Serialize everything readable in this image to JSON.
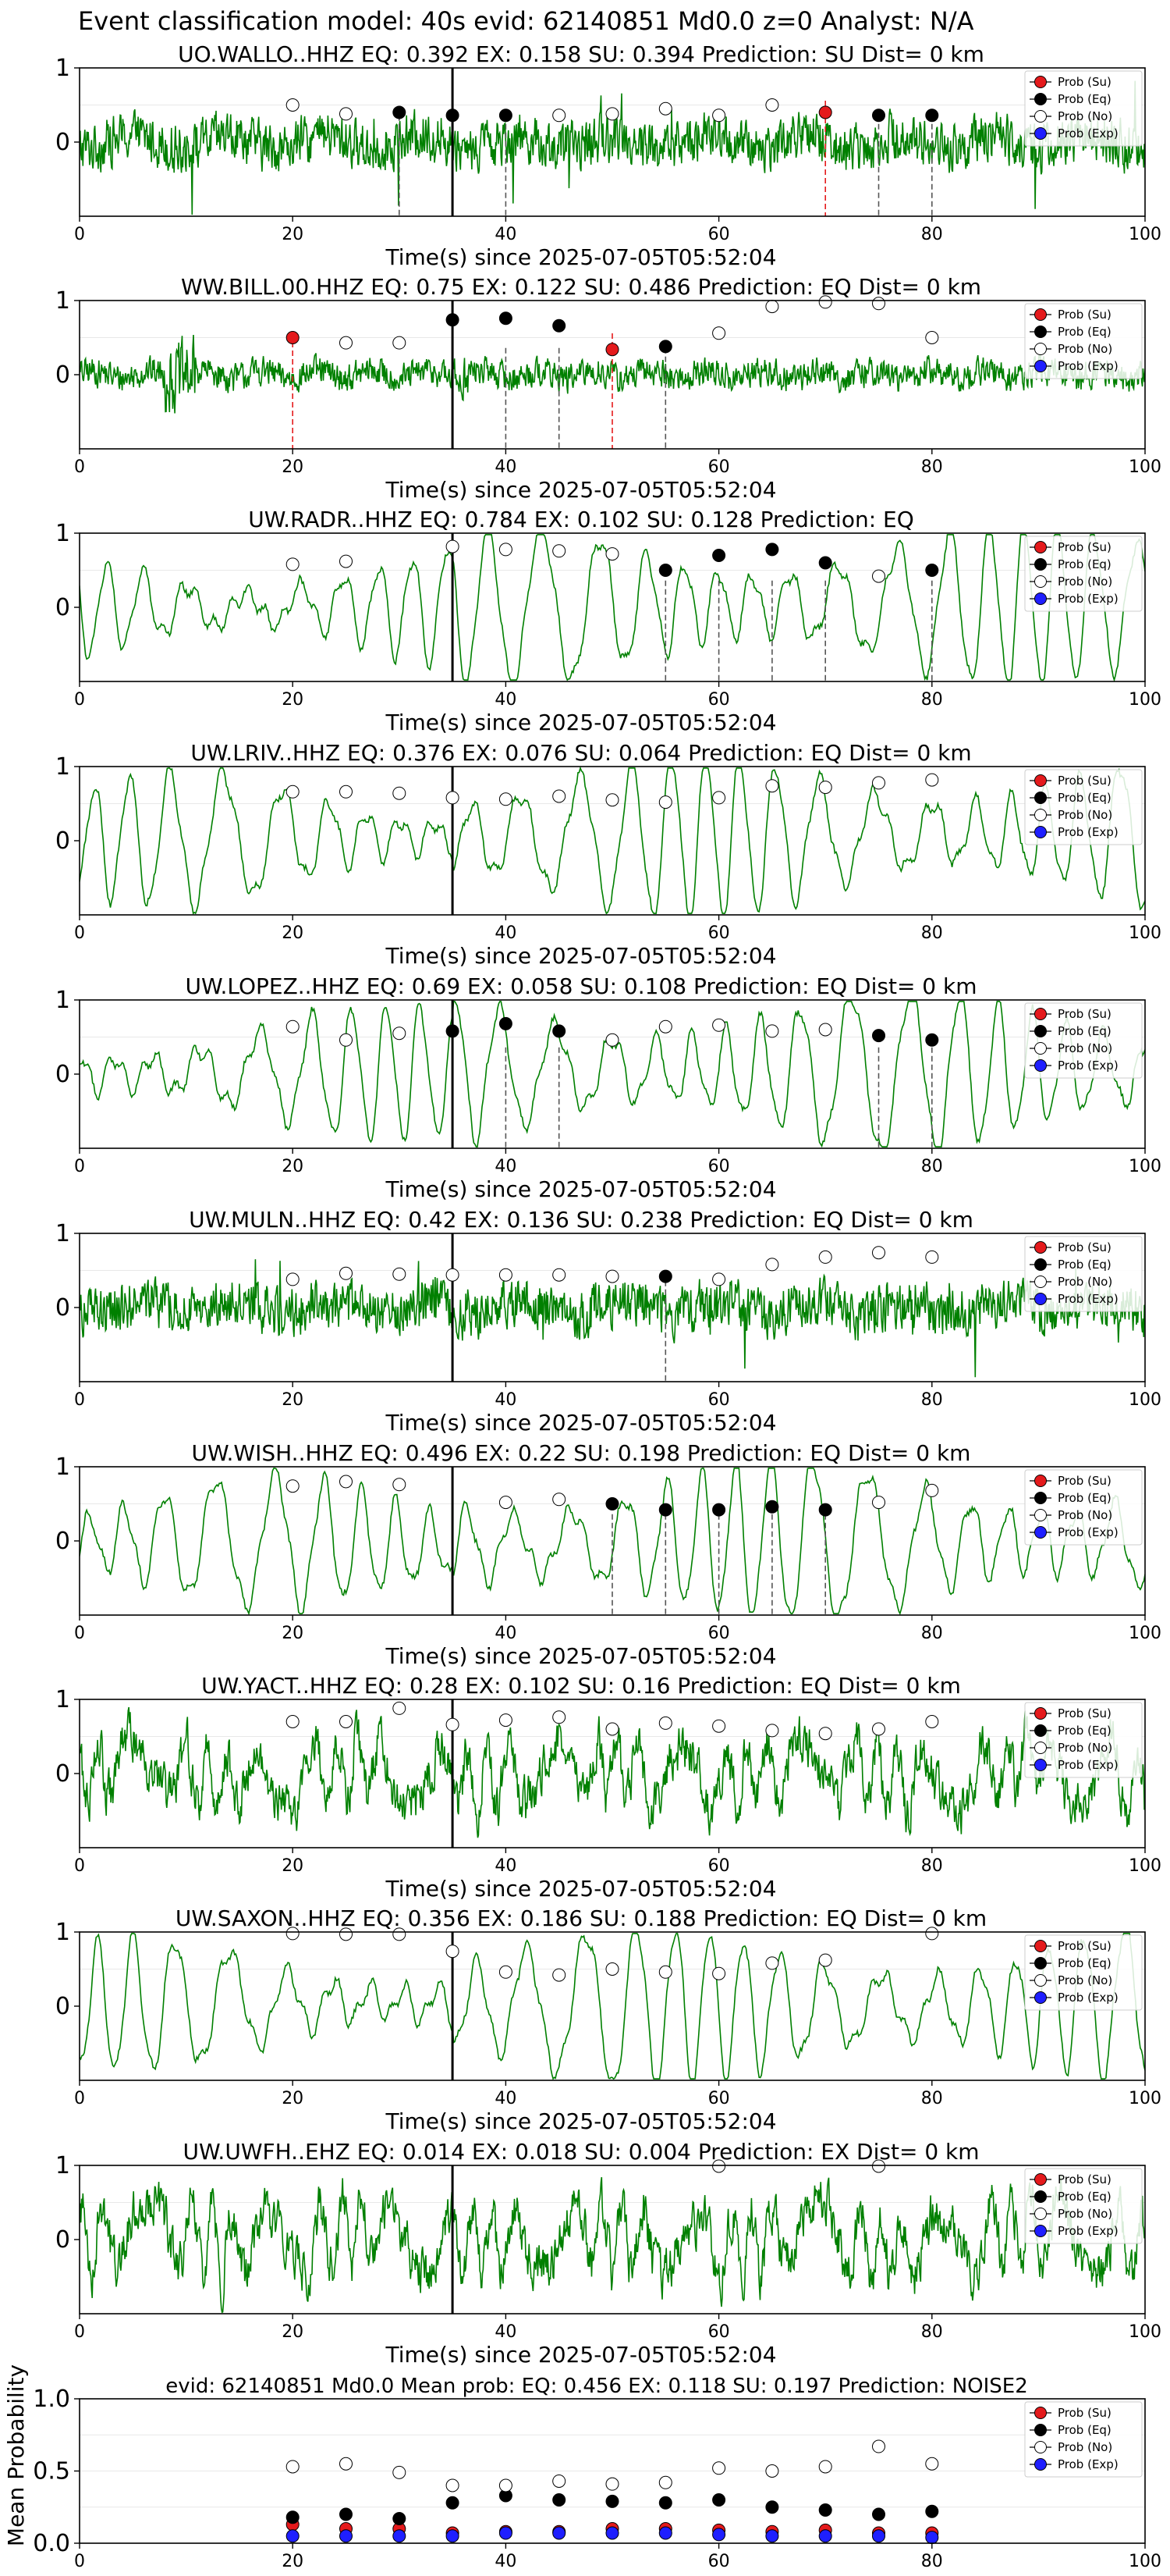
{
  "figure": {
    "suptitle": "Event classification model: 40s evid: 62140851 Md0.0 z=0 Analyst: N/A",
    "xlabel": "Time(s) since 2025-07-05T05:52:04",
    "legend_labels": [
      "Prob (Su)",
      "Prob (Eq)",
      "Prob (No)",
      "Prob (Exp)"
    ]
  },
  "colors": {
    "trace": "#008000",
    "su": "#e41a1c",
    "eq": "#000000",
    "no": "#ffffff",
    "exp": "#1f1fff",
    "onset_line": "#000000",
    "eq_marker_line": "#555555",
    "su_marker_line": "#e41a1c"
  },
  "chart_data": [
    {
      "type": "line",
      "title": "UO.WALLO..HHZ   EQ: 0.392  EX: 0.158  SU: 0.394   Prediction: SU    Dist= 0 km",
      "xlim": [
        0,
        100
      ],
      "ylim": [
        -1,
        1
      ],
      "xticks": [
        0,
        20,
        40,
        60,
        80,
        100
      ],
      "yticks": [
        0,
        1
      ],
      "onset": 35,
      "noise": "high",
      "series": [
        {
          "name": "Prob (Su)",
          "x": [
            70
          ],
          "y": [
            0.4
          ]
        },
        {
          "name": "Prob (Eq)",
          "x": [
            30,
            35,
            40,
            75,
            80
          ],
          "y": [
            0.4,
            0.36,
            0.36,
            0.36,
            0.36
          ]
        },
        {
          "name": "Prob (No)",
          "x": [
            20,
            25,
            45,
            50,
            55,
            60,
            65
          ],
          "y": [
            0.5,
            0.38,
            0.36,
            0.38,
            0.45,
            0.36,
            0.5
          ]
        },
        {
          "name": "Prob (Exp)",
          "x": [],
          "y": []
        }
      ],
      "eq_lines": [
        30,
        40,
        75,
        80
      ],
      "su_lines": [
        70
      ]
    },
    {
      "type": "line",
      "title": "WW.BILL.00.HHZ   EQ: 0.75  EX: 0.122  SU: 0.486   Prediction: EQ    Dist= 0 km",
      "xlim": [
        0,
        100
      ],
      "ylim": [
        -1,
        1
      ],
      "xticks": [
        0,
        20,
        40,
        60,
        80,
        100
      ],
      "yticks": [
        0,
        1
      ],
      "onset": 35,
      "noise": "burst",
      "series": [
        {
          "name": "Prob (Su)",
          "x": [
            20,
            50
          ],
          "y": [
            0.5,
            0.34
          ]
        },
        {
          "name": "Prob (Eq)",
          "x": [
            35,
            40,
            45,
            55
          ],
          "y": [
            0.74,
            0.76,
            0.66,
            0.38
          ]
        },
        {
          "name": "Prob (No)",
          "x": [
            25,
            30,
            60,
            65,
            70,
            75,
            80
          ],
          "y": [
            0.43,
            0.43,
            0.56,
            0.92,
            0.98,
            0.96,
            0.5
          ]
        },
        {
          "name": "Prob (Exp)",
          "x": [],
          "y": []
        }
      ],
      "eq_lines": [
        40,
        45,
        55
      ],
      "su_lines": [
        20,
        50
      ]
    },
    {
      "type": "line",
      "title": "UW.RADR..HHZ   EQ: 0.784  EX: 0.102  SU: 0.128   Prediction: EQ",
      "xlim": [
        0,
        100
      ],
      "ylim": [
        -1,
        1
      ],
      "xticks": [
        0,
        20,
        40,
        60,
        80,
        100
      ],
      "yticks": [
        0,
        1
      ],
      "onset": 35,
      "noise": "smooth",
      "series": [
        {
          "name": "Prob (Su)",
          "x": [],
          "y": []
        },
        {
          "name": "Prob (Eq)",
          "x": [
            55,
            60,
            65,
            70,
            80
          ],
          "y": [
            0.5,
            0.7,
            0.78,
            0.6,
            0.5
          ]
        },
        {
          "name": "Prob (No)",
          "x": [
            20,
            25,
            35,
            40,
            45,
            50,
            75
          ],
          "y": [
            0.58,
            0.62,
            0.82,
            0.78,
            0.76,
            0.72,
            0.42
          ]
        },
        {
          "name": "Prob (Exp)",
          "x": [],
          "y": []
        }
      ],
      "eq_lines": [
        55,
        60,
        65,
        70,
        80
      ],
      "su_lines": []
    },
    {
      "type": "line",
      "title": "UW.LRIV..HHZ   EQ: 0.376  EX: 0.076  SU: 0.064   Prediction: EQ    Dist= 0 km",
      "xlim": [
        0,
        100
      ],
      "ylim": [
        -1,
        1
      ],
      "xticks": [
        0,
        20,
        40,
        60,
        80,
        100
      ],
      "yticks": [
        0,
        1
      ],
      "onset": 35,
      "noise": "smooth",
      "series": [
        {
          "name": "Prob (Su)",
          "x": [],
          "y": []
        },
        {
          "name": "Prob (Eq)",
          "x": [],
          "y": []
        },
        {
          "name": "Prob (No)",
          "x": [
            20,
            25,
            30,
            35,
            40,
            45,
            50,
            55,
            60,
            65,
            70,
            75,
            80
          ],
          "y": [
            0.66,
            0.66,
            0.64,
            0.58,
            0.56,
            0.6,
            0.55,
            0.52,
            0.58,
            0.74,
            0.72,
            0.78,
            0.82
          ]
        },
        {
          "name": "Prob (Exp)",
          "x": [],
          "y": []
        }
      ],
      "eq_lines": [],
      "su_lines": []
    },
    {
      "type": "line",
      "title": "UW.LOPEZ..HHZ   EQ: 0.69  EX: 0.058  SU: 0.108   Prediction: EQ    Dist= 0 km",
      "xlim": [
        0,
        100
      ],
      "ylim": [
        -1,
        1
      ],
      "xticks": [
        0,
        20,
        40,
        60,
        80,
        100
      ],
      "yticks": [
        0,
        1
      ],
      "onset": 35,
      "noise": "smooth",
      "series": [
        {
          "name": "Prob (Su)",
          "x": [],
          "y": []
        },
        {
          "name": "Prob (Eq)",
          "x": [
            35,
            40,
            45,
            75,
            80
          ],
          "y": [
            0.58,
            0.68,
            0.58,
            0.52,
            0.46
          ]
        },
        {
          "name": "Prob (No)",
          "x": [
            20,
            25,
            30,
            50,
            55,
            60,
            65,
            70
          ],
          "y": [
            0.64,
            0.46,
            0.55,
            0.46,
            0.64,
            0.66,
            0.58,
            0.6
          ]
        },
        {
          "name": "Prob (Exp)",
          "x": [],
          "y": []
        }
      ],
      "eq_lines": [
        40,
        45,
        75,
        80
      ],
      "su_lines": []
    },
    {
      "type": "line",
      "title": "UW.MULN..HHZ   EQ: 0.42  EX: 0.136  SU: 0.238   Prediction: EQ    Dist= 0 km",
      "xlim": [
        0,
        100
      ],
      "ylim": [
        -1,
        1
      ],
      "xticks": [
        0,
        20,
        40,
        60,
        80,
        100
      ],
      "yticks": [
        0,
        1
      ],
      "onset": 35,
      "noise": "high",
      "series": [
        {
          "name": "Prob (Su)",
          "x": [],
          "y": []
        },
        {
          "name": "Prob (Eq)",
          "x": [
            55
          ],
          "y": [
            0.42
          ]
        },
        {
          "name": "Prob (No)",
          "x": [
            20,
            25,
            30,
            35,
            40,
            45,
            50,
            60,
            65,
            70,
            75,
            80
          ],
          "y": [
            0.38,
            0.46,
            0.45,
            0.44,
            0.44,
            0.44,
            0.42,
            0.38,
            0.58,
            0.68,
            0.74,
            0.68
          ]
        },
        {
          "name": "Prob (Exp)",
          "x": [],
          "y": []
        }
      ],
      "eq_lines": [
        55
      ],
      "su_lines": []
    },
    {
      "type": "line",
      "title": "UW.WISH..HHZ   EQ: 0.496  EX: 0.22  SU: 0.198   Prediction: EQ    Dist= 0 km",
      "xlim": [
        0,
        100
      ],
      "ylim": [
        -1,
        1
      ],
      "xticks": [
        0,
        20,
        40,
        60,
        80,
        100
      ],
      "yticks": [
        0,
        1
      ],
      "onset": 35,
      "noise": "smooth",
      "series": [
        {
          "name": "Prob (Su)",
          "x": [],
          "y": []
        },
        {
          "name": "Prob (Eq)",
          "x": [
            50,
            55,
            60,
            65,
            70
          ],
          "y": [
            0.5,
            0.42,
            0.42,
            0.46,
            0.42
          ]
        },
        {
          "name": "Prob (No)",
          "x": [
            20,
            25,
            30,
            40,
            45,
            75,
            80
          ],
          "y": [
            0.74,
            0.8,
            0.76,
            0.52,
            0.56,
            0.52,
            0.68
          ]
        },
        {
          "name": "Prob (Exp)",
          "x": [],
          "y": []
        }
      ],
      "eq_lines": [
        50,
        55,
        60,
        65,
        70
      ],
      "su_lines": []
    },
    {
      "type": "line",
      "title": "UW.YACT..HHZ   EQ: 0.28  EX: 0.102  SU: 0.16   Prediction: EQ    Dist= 0 km",
      "xlim": [
        0,
        100
      ],
      "ylim": [
        -1,
        1
      ],
      "xticks": [
        0,
        20,
        40,
        60,
        80,
        100
      ],
      "yticks": [
        0,
        1
      ],
      "onset": 35,
      "noise": "medium",
      "series": [
        {
          "name": "Prob (Su)",
          "x": [],
          "y": []
        },
        {
          "name": "Prob (Eq)",
          "x": [],
          "y": []
        },
        {
          "name": "Prob (No)",
          "x": [
            20,
            25,
            30,
            35,
            40,
            45,
            50,
            55,
            60,
            65,
            70,
            75,
            80
          ],
          "y": [
            0.7,
            0.7,
            0.88,
            0.66,
            0.72,
            0.76,
            0.6,
            0.68,
            0.64,
            0.58,
            0.54,
            0.6,
            0.7
          ]
        },
        {
          "name": "Prob (Exp)",
          "x": [],
          "y": []
        }
      ],
      "eq_lines": [],
      "su_lines": []
    },
    {
      "type": "line",
      "title": "UW.SAXON..HHZ   EQ: 0.356  EX: 0.186  SU: 0.188   Prediction: EQ    Dist= 0 km",
      "xlim": [
        0,
        100
      ],
      "ylim": [
        -1,
        1
      ],
      "xticks": [
        0,
        20,
        40,
        60,
        80,
        100
      ],
      "yticks": [
        0,
        1
      ],
      "onset": 35,
      "noise": "smooth",
      "series": [
        {
          "name": "Prob (Su)",
          "x": [],
          "y": []
        },
        {
          "name": "Prob (Eq)",
          "x": [],
          "y": []
        },
        {
          "name": "Prob (No)",
          "x": [
            20,
            25,
            30,
            35,
            40,
            45,
            50,
            55,
            60,
            65,
            70,
            80
          ],
          "y": [
            0.98,
            0.97,
            0.97,
            0.74,
            0.46,
            0.42,
            0.5,
            0.46,
            0.44,
            0.58,
            0.62,
            0.98
          ]
        },
        {
          "name": "Prob (Exp)",
          "x": [],
          "y": []
        }
      ],
      "eq_lines": [],
      "su_lines": []
    },
    {
      "type": "line",
      "title": "UW.UWFH..EHZ   EQ: 0.014  EX: 0.018  SU: 0.004   Prediction: EX    Dist= 0 km",
      "xlim": [
        0,
        100
      ],
      "ylim": [
        -1,
        1
      ],
      "xticks": [
        0,
        20,
        40,
        60,
        80,
        100
      ],
      "yticks": [
        0,
        1
      ],
      "onset": 35,
      "noise": "medium",
      "series": [
        {
          "name": "Prob (Su)",
          "x": [],
          "y": []
        },
        {
          "name": "Prob (Eq)",
          "x": [],
          "y": []
        },
        {
          "name": "Prob (No)",
          "x": [
            60,
            75
          ],
          "y": [
            0.99,
            0.99
          ]
        },
        {
          "name": "Prob (Exp)",
          "x": [],
          "y": []
        }
      ],
      "eq_lines": [],
      "su_lines": []
    },
    {
      "type": "scatter",
      "title": "evid: 62140851  Md0.0   Mean prob:   EQ: 0.456  EX: 0.118  SU: 0.197   Prediction: NOISE2",
      "ylabel": "Mean Probability",
      "xlim": [
        0,
        100
      ],
      "ylim": [
        0,
        1
      ],
      "xticks": [
        0,
        20,
        40,
        60,
        80,
        100
      ],
      "yticks": [
        0.0,
        0.5,
        1.0
      ],
      "series": [
        {
          "name": "Prob (Su)",
          "x": [
            20,
            25,
            30,
            35,
            40,
            45,
            50,
            55,
            60,
            65,
            70,
            75,
            80
          ],
          "y": [
            0.13,
            0.1,
            0.1,
            0.07,
            0.08,
            0.08,
            0.1,
            0.1,
            0.09,
            0.08,
            0.09,
            0.07,
            0.07
          ]
        },
        {
          "name": "Prob (Eq)",
          "x": [
            20,
            25,
            30,
            35,
            40,
            45,
            50,
            55,
            60,
            65,
            70,
            75,
            80
          ],
          "y": [
            0.18,
            0.2,
            0.17,
            0.28,
            0.33,
            0.3,
            0.29,
            0.28,
            0.3,
            0.25,
            0.23,
            0.2,
            0.22
          ]
        },
        {
          "name": "Prob (No)",
          "x": [
            20,
            25,
            30,
            35,
            40,
            45,
            50,
            55,
            60,
            65,
            70,
            75,
            80
          ],
          "y": [
            0.53,
            0.55,
            0.49,
            0.4,
            0.4,
            0.43,
            0.41,
            0.42,
            0.52,
            0.5,
            0.53,
            0.67,
            0.55
          ]
        },
        {
          "name": "Prob (Exp)",
          "x": [
            20,
            25,
            30,
            35,
            40,
            45,
            50,
            55,
            60,
            65,
            70,
            75,
            80
          ],
          "y": [
            0.05,
            0.05,
            0.05,
            0.05,
            0.07,
            0.07,
            0.07,
            0.07,
            0.06,
            0.05,
            0.05,
            0.05,
            0.04
          ]
        }
      ]
    }
  ]
}
